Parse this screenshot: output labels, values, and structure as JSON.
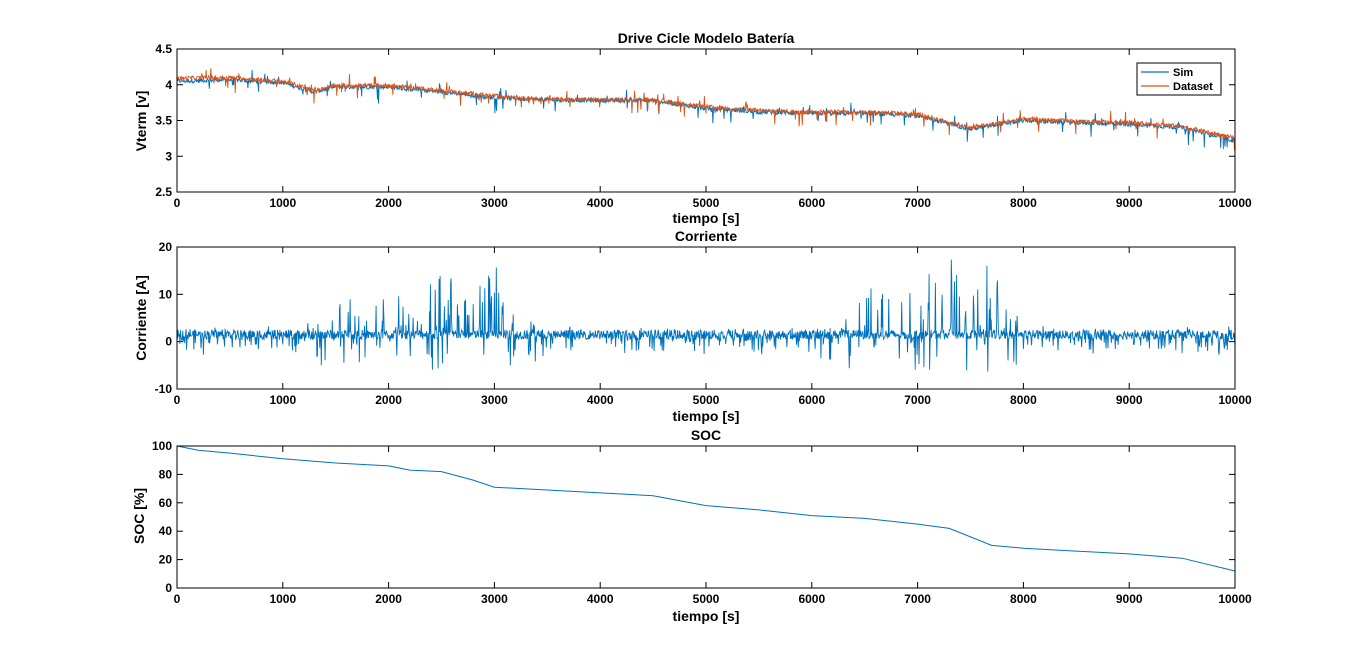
{
  "colors": {
    "sim": "#0072BD",
    "dataset": "#D95319",
    "axis": "#000000",
    "background": "#ffffff"
  },
  "chart_data": [
    {
      "type": "line",
      "title": "Drive Cicle Modelo Batería",
      "xlabel": "tiempo [s]",
      "ylabel": "Vterm [v]",
      "xlim": [
        0,
        10000
      ],
      "ylim": [
        2.5,
        4.5
      ],
      "xticks": [
        0,
        1000,
        2000,
        3000,
        4000,
        5000,
        6000,
        7000,
        8000,
        9000,
        10000
      ],
      "yticks": [
        2.5,
        3,
        3.5,
        4,
        4.5
      ],
      "xtick_labels": [
        "0",
        "1000",
        "2000",
        "3000",
        "4000",
        "5000",
        "6000",
        "7000",
        "8000",
        "9000",
        "10000"
      ],
      "ytick_labels": [
        "2.5",
        "3",
        "3.5",
        "4",
        "4.5"
      ],
      "grid": false,
      "legend": {
        "placement": "top-right",
        "entries": [
          "Sim",
          "Dataset"
        ]
      },
      "series": [
        {
          "name": "Sim",
          "color": "#0072BD",
          "x": [
            0,
            500,
            1000,
            1300,
            1500,
            2000,
            2500,
            3000,
            3500,
            4000,
            4500,
            5000,
            5500,
            6000,
            6500,
            7000,
            7500,
            8000,
            8500,
            9000,
            9500,
            10000
          ],
          "values": [
            4.05,
            4.07,
            4.03,
            3.9,
            3.97,
            3.97,
            3.9,
            3.82,
            3.79,
            3.78,
            3.78,
            3.67,
            3.62,
            3.6,
            3.6,
            3.57,
            3.38,
            3.5,
            3.47,
            3.45,
            3.4,
            3.22
          ]
        },
        {
          "name": "Dataset",
          "color": "#D95319",
          "x": [
            0,
            500,
            1000,
            1300,
            1500,
            2000,
            2500,
            3000,
            3500,
            4000,
            4500,
            5000,
            5500,
            6000,
            6500,
            7000,
            7500,
            8000,
            8500,
            9000,
            9500,
            10000
          ],
          "values": [
            4.09,
            4.1,
            4.05,
            3.92,
            3.99,
            3.99,
            3.92,
            3.84,
            3.8,
            3.79,
            3.79,
            3.69,
            3.64,
            3.62,
            3.62,
            3.59,
            3.4,
            3.52,
            3.49,
            3.47,
            3.42,
            3.25
          ]
        }
      ]
    },
    {
      "type": "line",
      "title": "Corriente",
      "xlabel": "tiempo [s]",
      "ylabel": "Corriente [A]",
      "xlim": [
        0,
        10000
      ],
      "ylim": [
        -10,
        20
      ],
      "xticks": [
        0,
        1000,
        2000,
        3000,
        4000,
        5000,
        6000,
        7000,
        8000,
        9000,
        10000
      ],
      "yticks": [
        -10,
        0,
        10,
        20
      ],
      "xtick_labels": [
        "0",
        "1000",
        "2000",
        "3000",
        "4000",
        "5000",
        "6000",
        "7000",
        "8000",
        "9000",
        "10000"
      ],
      "ytick_labels": [
        "-10",
        "0",
        "10",
        "20"
      ],
      "grid": false,
      "series": [
        {
          "color": "#0072BD",
          "x": [
            0,
            500,
            1000,
            1350,
            2000,
            2100,
            2500,
            2800,
            3000,
            3500,
            4000,
            4500,
            5000,
            5400,
            6000,
            6100,
            6800,
            7000,
            7500,
            7800,
            8000,
            8500,
            9000,
            9500,
            10000
          ],
          "values": [
            1.5,
            1.5,
            1.5,
            6.5,
            9.0,
            10.0,
            14.5,
            13.0,
            15.5,
            1.5,
            1.5,
            1.5,
            1.5,
            1.5,
            1.5,
            6.5,
            14.0,
            14.5,
            18.0,
            17.5,
            1.5,
            1.5,
            1.5,
            1.5,
            2.0
          ]
        }
      ]
    },
    {
      "type": "line",
      "title": "SOC",
      "xlabel": "tiempo [s]",
      "ylabel": "SOC [%]",
      "xlim": [
        0,
        10000
      ],
      "ylim": [
        0,
        100
      ],
      "xticks": [
        0,
        1000,
        2000,
        3000,
        4000,
        5000,
        6000,
        7000,
        8000,
        9000,
        10000
      ],
      "yticks": [
        0,
        20,
        40,
        60,
        80,
        100
      ],
      "xtick_labels": [
        "0",
        "1000",
        "2000",
        "3000",
        "4000",
        "5000",
        "6000",
        "7000",
        "8000",
        "9000",
        "10000"
      ],
      "ytick_labels": [
        "0",
        "20",
        "40",
        "60",
        "80",
        "100"
      ],
      "grid": false,
      "series": [
        {
          "color": "#0072BD",
          "x": [
            0,
            200,
            500,
            1000,
            1500,
            2000,
            2200,
            2500,
            2800,
            3000,
            3500,
            4000,
            4500,
            5000,
            5500,
            6000,
            6500,
            7000,
            7300,
            7700,
            8000,
            8500,
            9000,
            9500,
            10000
          ],
          "values": [
            100,
            97,
            95,
            91,
            88,
            86,
            83,
            82,
            76,
            71,
            69,
            67,
            65,
            58,
            55,
            51,
            49,
            45,
            42,
            30,
            28,
            26,
            24,
            21,
            12
          ]
        }
      ]
    }
  ]
}
